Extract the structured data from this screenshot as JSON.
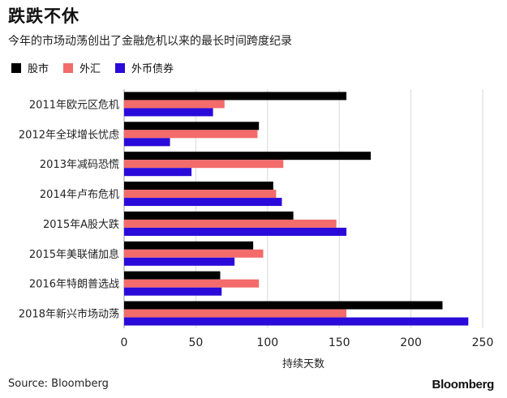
{
  "header": {
    "title": "跌跌不休",
    "subtitle": "今年的市场动荡创出了金融危机以来的最长时间跨度纪录"
  },
  "footer": {
    "source": "Source: Bloomberg",
    "brand": "Bloomberg"
  },
  "chart_data": {
    "type": "bar",
    "orientation": "horizontal",
    "title": "跌跌不休",
    "subtitle": "今年的市场动荡创出了金融危机以来的最长时间跨度纪录",
    "xlabel": "持续天数",
    "ylabel": "",
    "xlim": [
      0,
      250
    ],
    "xticks": [
      0,
      50,
      100,
      150,
      200,
      250
    ],
    "grid": true,
    "legend_position": "top-left",
    "categories": [
      "2011年欧元区危机",
      "2012年全球增长忧虑",
      "2013年减码恐慌",
      "2014年卢布危机",
      "2015年A股大跌",
      "2015年美联储加息",
      "2016年特朗普选战",
      "2018年新兴市场动荡"
    ],
    "series": [
      {
        "name": "股市",
        "color": "#000000",
        "values": [
          155,
          94,
          172,
          104,
          118,
          90,
          67,
          222
        ]
      },
      {
        "name": "外汇",
        "color": "#f36b6b",
        "values": [
          70,
          93,
          111,
          106,
          148,
          97,
          94,
          155
        ]
      },
      {
        "name": "外币债券",
        "color": "#2a0ad9",
        "values": [
          62,
          32,
          47,
          110,
          155,
          77,
          68,
          240
        ]
      }
    ]
  }
}
